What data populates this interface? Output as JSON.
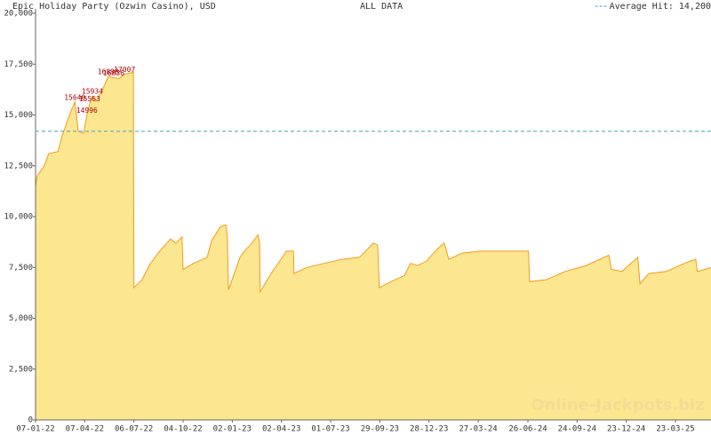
{
  "chart_data": {
    "type": "area",
    "title": "Epic Holiday Party (Ozwin Casino), USD",
    "subtitle": "ALL DATA",
    "watermark": "Online-Jackpots.biz",
    "color": "#fce68f",
    "line_color": "#f39a1e",
    "x": [
      "2022-01-07",
      "2022-01-10",
      "2022-01-23",
      "2022-01-31",
      "2022-02-17",
      "2022-02-25",
      "2022-03-10",
      "2022-03-20",
      "2022-03-26",
      "2022-04-05",
      "2022-04-11",
      "2022-04-16",
      "2022-04-21",
      "2022-04-28",
      "2022-05-09",
      "2022-05-20",
      "2022-05-30",
      "2022-06-09",
      "2022-06-19",
      "2022-07-05",
      "2022-07-06",
      "2022-07-21",
      "2022-08-03",
      "2022-08-19",
      "2022-09-11",
      "2022-09-21",
      "2022-10-02",
      "2022-10-04",
      "2022-10-23",
      "2022-11-17",
      "2022-11-25",
      "2022-12-11",
      "2022-12-21",
      "2022-12-24",
      "2022-12-26",
      "2023-01-03",
      "2023-01-16",
      "2023-01-24",
      "2023-02-04",
      "2023-02-18",
      "2023-02-21",
      "2023-02-22",
      "2023-03-14",
      "2023-04-01",
      "2023-04-11",
      "2023-04-24",
      "2023-04-25",
      "2023-05-18",
      "2023-06-19",
      "2023-07-22",
      "2023-08-23",
      "2023-09-17",
      "2023-09-25",
      "2023-09-28",
      "2023-10-19",
      "2023-11-13",
      "2023-11-24",
      "2023-12-07",
      "2023-12-23",
      "2024-01-12",
      "2024-01-25",
      "2024-02-02",
      "2024-02-26",
      "2024-03-30",
      "2024-06-27",
      "2024-06-29",
      "2024-07-30",
      "2024-09-02",
      "2024-10-11",
      "2024-11-21",
      "2024-11-26",
      "2024-12-15",
      "2025-01-13",
      "2025-01-17",
      "2025-02-02",
      "2025-03-06",
      "2025-04-08",
      "2025-04-29",
      "2025-05-02",
      "2025-05-27"
    ],
    "values": [
      11500,
      12000,
      12500,
      13100,
      13200,
      14000,
      15000,
      15640,
      14200,
      14100,
      14996,
      15563,
      15934,
      15700,
      16200,
      16898,
      16836,
      16800,
      17007,
      17100,
      6500,
      6900,
      7600,
      8200,
      8900,
      8700,
      9000,
      7400,
      7700,
      8000,
      8800,
      9500,
      9600,
      9000,
      6400,
      7000,
      8000,
      8300,
      8600,
      9100,
      8700,
      6300,
      7200,
      7900,
      8300,
      8300,
      7200,
      7500,
      7700,
      7900,
      8000,
      8700,
      8600,
      6500,
      6800,
      7100,
      7700,
      7600,
      7800,
      8400,
      8700,
      7900,
      8200,
      8300,
      8300,
      6800,
      6900,
      7300,
      7600,
      8100,
      7400,
      7300,
      8000,
      6700,
      7200,
      7300,
      7700,
      7900,
      7300,
      7500
    ],
    "annotations": [
      {
        "x": "2022-03-20",
        "value": 15640
      },
      {
        "x": "2022-04-11",
        "value": 14996
      },
      {
        "x": "2022-04-16",
        "value": 15563
      },
      {
        "x": "2022-04-21",
        "value": 15934
      },
      {
        "x": "2022-05-20",
        "value": 16898
      },
      {
        "x": "2022-05-30",
        "value": 16836
      },
      {
        "x": "2022-06-19",
        "value": 17007
      }
    ],
    "reference_line": {
      "label": "Average Hit: 14,200",
      "value": 14200,
      "color": "#3fa0c0"
    },
    "xlim": [
      "2022-01-07",
      "2025-05-27"
    ],
    "xticks": [
      {
        "value": "2022-01-07",
        "label": "07-01-22"
      },
      {
        "value": "2022-04-07",
        "label": "07-04-22"
      },
      {
        "value": "2022-07-06",
        "label": "06-07-22"
      },
      {
        "value": "2022-10-04",
        "label": "04-10-22"
      },
      {
        "value": "2023-01-02",
        "label": "02-01-23"
      },
      {
        "value": "2023-04-02",
        "label": "02-04-23"
      },
      {
        "value": "2023-07-01",
        "label": "01-07-23"
      },
      {
        "value": "2023-09-29",
        "label": "29-09-23"
      },
      {
        "value": "2023-12-28",
        "label": "28-12-23"
      },
      {
        "value": "2024-03-27",
        "label": "27-03-24"
      },
      {
        "value": "2024-06-26",
        "label": "26-06-24"
      },
      {
        "value": "2024-09-24",
        "label": "24-09-24"
      },
      {
        "value": "2024-12-23",
        "label": "23-12-24"
      },
      {
        "value": "2025-03-23",
        "label": "23-03-25"
      }
    ],
    "ylim": [
      0,
      20000
    ],
    "yticks": [
      0,
      {
        "value": 2500,
        "label": "2,500"
      },
      {
        "value": 5000,
        "label": "5,000"
      },
      {
        "value": 7500,
        "label": "7,500"
      },
      {
        "value": 10000,
        "label": "10,000"
      },
      {
        "value": 12500,
        "label": "12,500"
      },
      {
        "value": 15000,
        "label": "15,000"
      },
      {
        "value": 17500,
        "label": "17,500"
      },
      {
        "value": 20000,
        "label": "20,000"
      }
    ]
  }
}
